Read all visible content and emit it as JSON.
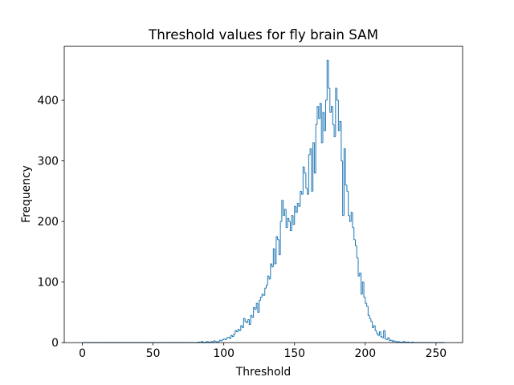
{
  "chart_data": {
    "type": "histogram",
    "title": "Threshold values for fly brain SAM",
    "x_label": "Threshold",
    "y_label": "Frequency",
    "color": "#1f77b4",
    "bins": [
      0,
      1,
      2,
      3,
      4,
      5,
      6,
      7,
      8,
      9,
      10,
      11,
      12,
      13,
      14,
      15,
      16,
      17,
      18,
      19,
      20,
      21,
      22,
      23,
      24,
      25,
      26,
      27,
      28,
      29,
      30,
      31,
      32,
      33,
      34,
      35,
      36,
      37,
      38,
      39,
      40,
      41,
      42,
      43,
      44,
      45,
      46,
      47,
      48,
      49,
      50,
      51,
      52,
      53,
      54,
      55,
      56,
      57,
      58,
      59,
      60,
      61,
      62,
      63,
      64,
      65,
      66,
      67,
      68,
      69,
      70,
      71,
      72,
      73,
      74,
      75,
      76,
      77,
      78,
      79,
      80,
      81,
      82,
      83,
      84,
      85,
      86,
      87,
      88,
      89,
      90,
      91,
      92,
      93,
      94,
      95,
      96,
      97,
      98,
      99,
      100,
      101,
      102,
      103,
      104,
      105,
      106,
      107,
      108,
      109,
      110,
      111,
      112,
      113,
      114,
      115,
      116,
      117,
      118,
      119,
      120,
      121,
      122,
      123,
      124,
      125,
      126,
      127,
      128,
      129,
      130,
      131,
      132,
      133,
      134,
      135,
      136,
      137,
      138,
      139,
      140,
      141,
      142,
      143,
      144,
      145,
      146,
      147,
      148,
      149,
      150,
      151,
      152,
      153,
      154,
      155,
      156,
      157,
      158,
      159,
      160,
      161,
      162,
      163,
      164,
      165,
      166,
      167,
      168,
      169,
      170,
      171,
      172,
      173,
      174,
      175,
      176,
      177,
      178,
      179,
      180,
      181,
      182,
      183,
      184,
      185,
      186,
      187,
      188,
      189,
      190,
      191,
      192,
      193,
      194,
      195,
      196,
      197,
      198,
      199,
      200,
      201,
      202,
      203,
      204,
      205,
      206,
      207,
      208,
      209,
      210,
      211,
      212,
      213,
      214,
      215,
      216,
      217,
      218,
      219,
      220,
      221,
      222,
      223,
      224,
      225,
      226,
      227,
      228,
      229,
      230,
      231,
      232,
      233,
      234,
      235,
      236,
      237,
      238,
      239,
      240,
      241,
      242,
      243,
      244,
      245,
      246,
      247,
      248,
      249,
      250,
      251,
      252,
      253,
      254,
      255,
      256
    ],
    "values": [
      0,
      0,
      0,
      0,
      0,
      0,
      0,
      0,
      0,
      0,
      0,
      0,
      0,
      0,
      0,
      0,
      0,
      0,
      0,
      0,
      0,
      0,
      0,
      0,
      0,
      0,
      0,
      0,
      0,
      0,
      0,
      0,
      0,
      0,
      0,
      0,
      0,
      0,
      0,
      0,
      0,
      0,
      0,
      0,
      0,
      0,
      0,
      0,
      0,
      0,
      0,
      0,
      0,
      0,
      0,
      0,
      0,
      0,
      0,
      0,
      0,
      0,
      0,
      0,
      0,
      0,
      0,
      0,
      0,
      0,
      0,
      0,
      0,
      0,
      0,
      0,
      0,
      0,
      0,
      0,
      0,
      0,
      1,
      0,
      2,
      1,
      0,
      1,
      2,
      1,
      0,
      2,
      1,
      3,
      2,
      1,
      2,
      4,
      3,
      5,
      6,
      5,
      8,
      9,
      7,
      12,
      10,
      14,
      20,
      18,
      22,
      20,
      28,
      25,
      40,
      35,
      33,
      38,
      30,
      45,
      42,
      58,
      55,
      65,
      50,
      70,
      75,
      80,
      78,
      90,
      95,
      110,
      105,
      130,
      125,
      155,
      130,
      175,
      170,
      145,
      200,
      235,
      210,
      220,
      190,
      205,
      200,
      185,
      210,
      195,
      225,
      215,
      230,
      225,
      250,
      245,
      290,
      280,
      255,
      245,
      310,
      320,
      250,
      330,
      280,
      360,
      390,
      370,
      395,
      330,
      380,
      350,
      400,
      466,
      420,
      380,
      390,
      360,
      340,
      420,
      400,
      350,
      365,
      300,
      210,
      320,
      260,
      250,
      210,
      200,
      215,
      190,
      170,
      160,
      140,
      110,
      115,
      80,
      100,
      75,
      65,
      60,
      45,
      40,
      35,
      25,
      28,
      20,
      15,
      12,
      18,
      10,
      8,
      20,
      6,
      5,
      8,
      3,
      4,
      2,
      3,
      2,
      1,
      2,
      1,
      0,
      1,
      2,
      0,
      1,
      1,
      0,
      0,
      1,
      0,
      0,
      0,
      0,
      0,
      0,
      0,
      0,
      0,
      0,
      0,
      0,
      0,
      0,
      0,
      0,
      0,
      0,
      0,
      0,
      0,
      0
    ],
    "xlim": [
      -12.8,
      268.8
    ],
    "ylim": [
      0,
      489.3
    ],
    "xticks": [
      0,
      50,
      100,
      150,
      200,
      250
    ],
    "yticks": [
      0,
      100,
      200,
      300,
      400
    ]
  }
}
